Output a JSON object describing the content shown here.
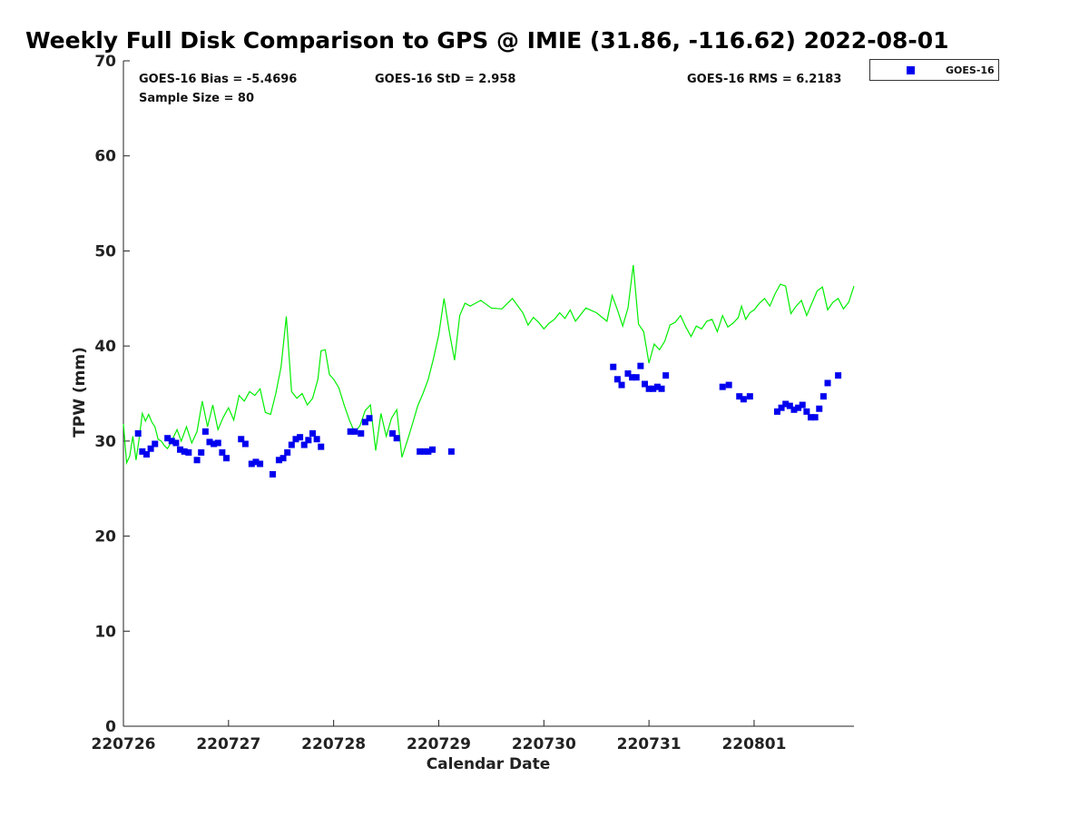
{
  "chart_data": {
    "type": "scatter",
    "title": "Weekly Full Disk Comparison to GPS @ IMIE (31.86, -116.62) 2022-08-01",
    "xlabel": "Calendar Date",
    "ylabel": "TPW (mm)",
    "ylim": [
      0,
      70
    ],
    "xlim": [
      0,
      6.95
    ],
    "yticks": [
      0,
      10,
      20,
      30,
      40,
      50,
      60,
      70
    ],
    "xtick_labels": [
      "220726",
      "220727",
      "220728",
      "220729",
      "220730",
      "220731",
      "220801"
    ],
    "stats": {
      "bias": "GOES-16 Bias = -5.4696",
      "std": "GOES-16 StD = 2.958",
      "rms": "GOES-16 RMS = 6.2183",
      "sample": "Sample Size = 80"
    },
    "legend": {
      "label": "GOES-16",
      "position": "top-right",
      "color": "#0000ee"
    },
    "series": [
      {
        "name": "GPS",
        "kind": "line",
        "color": "#00ee00",
        "x": [
          0.0,
          0.03,
          0.06,
          0.09,
          0.12,
          0.15,
          0.18,
          0.21,
          0.24,
          0.27,
          0.3,
          0.33,
          0.36,
          0.39,
          0.42,
          0.45,
          0.48,
          0.51,
          0.55,
          0.6,
          0.65,
          0.7,
          0.75,
          0.8,
          0.85,
          0.9,
          0.95,
          1.0,
          1.05,
          1.1,
          1.15,
          1.2,
          1.25,
          1.3,
          1.35,
          1.4,
          1.45,
          1.5,
          1.55,
          1.6,
          1.65,
          1.7,
          1.75,
          1.8,
          1.85,
          1.88,
          1.92,
          1.96,
          2.0,
          2.05,
          2.1,
          2.15,
          2.2,
          2.25,
          2.3,
          2.35,
          2.4,
          2.45,
          2.5,
          2.55,
          2.6,
          2.65,
          2.7,
          2.75,
          2.8,
          2.85,
          2.9,
          2.95,
          3.0,
          3.05,
          3.1,
          3.15,
          3.2,
          3.25,
          3.3,
          3.4,
          3.5,
          3.6,
          3.7,
          3.8,
          3.85,
          3.9,
          3.95,
          4.0,
          4.05,
          4.1,
          4.15,
          4.2,
          4.25,
          4.3,
          4.4,
          4.5,
          4.6,
          4.65,
          4.7,
          4.75,
          4.8,
          4.85,
          4.9,
          4.95,
          5.0,
          5.05,
          5.1,
          5.15,
          5.2,
          5.25,
          5.3,
          5.35,
          5.4,
          5.45,
          5.5,
          5.55,
          5.6,
          5.65,
          5.7,
          5.75,
          5.8,
          5.85,
          5.88,
          5.92,
          5.96,
          6.0,
          6.05,
          6.1,
          6.15,
          6.2,
          6.25,
          6.3,
          6.35,
          6.4,
          6.45,
          6.5,
          6.55,
          6.6,
          6.65,
          6.7,
          6.75,
          6.8,
          6.85,
          6.9,
          6.95
        ],
        "y": [
          31.8,
          27.7,
          28.4,
          30.5,
          28.0,
          30.3,
          32.9,
          32.1,
          32.8,
          32.0,
          31.5,
          30.2,
          30.0,
          29.5,
          29.2,
          29.8,
          30.5,
          31.2,
          30.0,
          31.5,
          29.8,
          31.0,
          34.2,
          31.5,
          33.8,
          31.2,
          32.5,
          33.5,
          32.2,
          34.8,
          34.2,
          35.2,
          34.8,
          35.5,
          33.0,
          32.8,
          35.0,
          37.8,
          43.1,
          35.2,
          34.5,
          35.0,
          33.8,
          34.5,
          36.5,
          39.5,
          39.6,
          37.0,
          36.5,
          35.6,
          33.8,
          32.2,
          30.9,
          31.6,
          33.2,
          33.8,
          29.0,
          32.9,
          30.5,
          32.4,
          33.3,
          28.3,
          30.0,
          31.8,
          33.7,
          35.0,
          36.5,
          38.7,
          41.2,
          45.0,
          41.5,
          38.5,
          43.2,
          44.5,
          44.2,
          44.8,
          44.0,
          43.9,
          45.0,
          43.5,
          42.2,
          43.0,
          42.5,
          41.8,
          42.4,
          42.8,
          43.5,
          42.9,
          43.8,
          42.6,
          44.0,
          43.5,
          42.6,
          45.3,
          43.8,
          42.1,
          44.0,
          48.5,
          42.3,
          41.5,
          38.2,
          40.2,
          39.6,
          40.5,
          42.2,
          42.5,
          43.2,
          42.0,
          41.0,
          42.1,
          41.8,
          42.6,
          42.8,
          41.5,
          43.2,
          42.0,
          42.4,
          43.0,
          44.2,
          42.8,
          43.5,
          43.8,
          44.5,
          45.0,
          44.2,
          45.5,
          46.5,
          46.3,
          43.4,
          44.2,
          44.8,
          43.2,
          44.5,
          45.8,
          46.2,
          43.8,
          44.6,
          45.0,
          43.9,
          44.6,
          46.3
        ]
      },
      {
        "name": "GOES-16",
        "kind": "scatter",
        "color": "#0000ee",
        "x": [
          0.14,
          0.18,
          0.22,
          0.26,
          0.3,
          0.42,
          0.46,
          0.5,
          0.54,
          0.58,
          0.62,
          0.7,
          0.74,
          0.78,
          0.82,
          0.86,
          0.9,
          0.94,
          0.98,
          1.12,
          1.16,
          1.22,
          1.26,
          1.3,
          1.42,
          1.48,
          1.52,
          1.56,
          1.6,
          1.64,
          1.68,
          1.72,
          1.76,
          1.8,
          1.84,
          1.88,
          2.16,
          2.2,
          2.26,
          2.3,
          2.34,
          2.56,
          2.6,
          2.82,
          2.86,
          2.9,
          2.94,
          3.12,
          4.66,
          4.7,
          4.74,
          4.8,
          4.84,
          4.88,
          4.92,
          4.96,
          5.0,
          5.04,
          5.08,
          5.12,
          5.16,
          5.7,
          5.76,
          5.86,
          5.9,
          5.96,
          6.22,
          6.26,
          6.3,
          6.34,
          6.38,
          6.42,
          6.46,
          6.5,
          6.54,
          6.58,
          6.62,
          6.66,
          6.7,
          6.8
        ],
        "y": [
          30.8,
          28.9,
          28.6,
          29.2,
          29.7,
          30.3,
          30.0,
          29.8,
          29.1,
          28.9,
          28.8,
          28.0,
          28.8,
          31.0,
          29.9,
          29.7,
          29.8,
          28.8,
          28.2,
          30.2,
          29.7,
          27.6,
          27.8,
          27.6,
          26.5,
          28.0,
          28.2,
          28.8,
          29.6,
          30.2,
          30.4,
          29.6,
          30.1,
          30.8,
          30.2,
          29.4,
          31.0,
          31.0,
          30.8,
          32.0,
          32.4,
          30.8,
          30.3,
          28.9,
          28.9,
          28.9,
          29.1,
          28.9,
          37.8,
          36.5,
          35.9,
          37.1,
          36.7,
          36.7,
          37.9,
          36.0,
          35.5,
          35.5,
          35.7,
          35.5,
          36.9,
          35.7,
          35.9,
          34.7,
          34.4,
          34.7,
          33.1,
          33.5,
          33.9,
          33.7,
          33.3,
          33.5,
          33.8,
          33.1,
          32.5,
          32.5,
          33.4,
          34.7,
          36.1,
          36.9
        ]
      }
    ]
  }
}
